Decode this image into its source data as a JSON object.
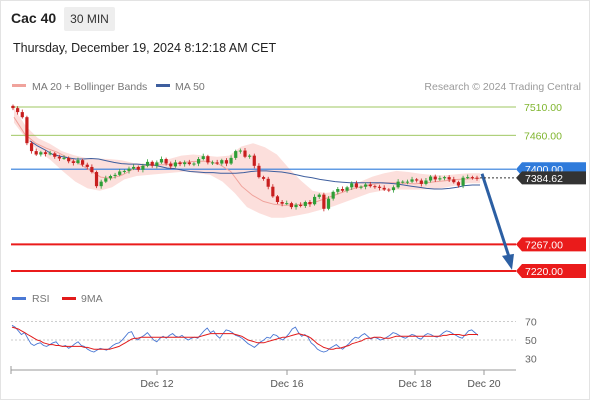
{
  "header": {
    "instrument": "Cac 40",
    "timeframe_button": "30 MIN"
  },
  "timestamp": "Thursday, December 19, 2024 8:12:18 AM CET",
  "colors": {
    "green_level": "#7fb52e",
    "blue_level": "#2f7bdb",
    "red_level": "#ea1b1b",
    "bollinger_fill": "#fbd4d0",
    "ma20": "#f0a39c",
    "ma50": "#3e5e9e",
    "candle_up": "#2e9e37",
    "candle_down": "#c81e1e",
    "projection_arrow": "#2c5fa3",
    "rsi": "#4a78d4",
    "rsi_ma": "#e21b1b",
    "price_tag": "#333333"
  },
  "chart_data": [
    {
      "type": "candlestick",
      "legend": [
        {
          "name": "MA 20 + Bollinger Bands",
          "color": "#f0a39c"
        },
        {
          "name": "MA 50",
          "color": "#3e5e9e"
        }
      ],
      "legend_placement": "top-left",
      "watermark": "Research © 2024 Trading Central",
      "ylim": [
        7205,
        7525
      ],
      "x_ticks": [
        "Dec 12",
        "Dec 16",
        "Dec 18",
        "Dec 20"
      ],
      "levels": [
        {
          "value": 7510,
          "label": "7510.00",
          "color": "#7fb52e",
          "style": "thin"
        },
        {
          "value": 7460,
          "label": "7460.00",
          "color": "#7fb52e",
          "style": "thin"
        },
        {
          "value": 7400,
          "label": "7400.00",
          "color": "#2f7bdb",
          "style": "tag"
        },
        {
          "value": 7267,
          "label": "7267.00",
          "color": "#ea1b1b",
          "style": "tag"
        },
        {
          "value": 7220,
          "label": "7220.00",
          "color": "#ea1b1b",
          "style": "tag"
        }
      ],
      "last_price": {
        "value": 7384.62,
        "label": "7384.62"
      },
      "closes": [
        7508,
        7501,
        7492,
        7446,
        7432,
        7426,
        7430,
        7427,
        7428,
        7422,
        7419,
        7420,
        7414,
        7411,
        7416,
        7408,
        7404,
        7395,
        7370,
        7378,
        7384,
        7388,
        7390,
        7396,
        7397,
        7401,
        7404,
        7399,
        7406,
        7413,
        7406,
        7412,
        7418,
        7410,
        7405,
        7412,
        7409,
        7412,
        7409,
        7410,
        7418,
        7423,
        7412,
        7412,
        7410,
        7416,
        7410,
        7420,
        7432,
        7433,
        7422,
        7424,
        7406,
        7386,
        7383,
        7369,
        7352,
        7342,
        7339,
        7340,
        7333,
        7337,
        7335,
        7342,
        7338,
        7351,
        7355,
        7330,
        7348,
        7360,
        7365,
        7362,
        7368,
        7375,
        7368,
        7369,
        7373,
        7370,
        7369,
        7367,
        7364,
        7363,
        7368,
        7378,
        7378,
        7378,
        7382,
        7380,
        7374,
        7380,
        7387,
        7382,
        7384,
        7386,
        7382,
        7377,
        7371,
        7385,
        7386,
        7385,
        7384
      ],
      "ma50": [
        7450,
        7441,
        7434,
        7426,
        7423,
        7420,
        7418,
        7418,
        7419,
        7418,
        7415,
        7412,
        7410,
        7409,
        7409,
        7408,
        7408,
        7405,
        7402,
        7401,
        7398,
        7396,
        7395,
        7394,
        7394,
        7393,
        7393,
        7393,
        7394,
        7396,
        7397,
        7397,
        7396,
        7395,
        7393,
        7390,
        7387,
        7385,
        7382,
        7380,
        7378,
        7377,
        7376,
        7376,
        7376,
        7376,
        7376,
        7375,
        7374,
        7372,
        7370,
        7368,
        7366,
        7365,
        7365,
        7366,
        7368,
        7371,
        7372,
        7372
      ],
      "ma20": [
        7492,
        7462,
        7446,
        7437,
        7430,
        7420,
        7410,
        7398,
        7386,
        7384,
        7390,
        7400,
        7406,
        7408,
        7408,
        7410,
        7413,
        7414,
        7414,
        7408,
        7396,
        7370,
        7354,
        7343,
        7338,
        7336,
        7337,
        7339,
        7343,
        7350,
        7357,
        7364,
        7369,
        7373,
        7376,
        7376,
        7375,
        7374,
        7376,
        7378,
        7380,
        7382,
        7383,
        7384
      ],
      "bb_upper": [
        7508,
        7476,
        7455,
        7445,
        7432,
        7425,
        7420,
        7419,
        7418,
        7416,
        7411,
        7410,
        7412,
        7418,
        7424,
        7426,
        7424,
        7422,
        7424,
        7440,
        7446,
        7439,
        7426,
        7402,
        7380,
        7362,
        7358,
        7360,
        7368,
        7378,
        7387,
        7393,
        7397,
        7395,
        7392,
        7390,
        7389,
        7391,
        7393,
        7393
      ],
      "bb_lower": [
        7482,
        7454,
        7432,
        7416,
        7396,
        7378,
        7366,
        7362,
        7368,
        7382,
        7388,
        7390,
        7392,
        7394,
        7396,
        7393,
        7390,
        7378,
        7358,
        7333,
        7322,
        7314,
        7314,
        7318,
        7322,
        7328,
        7334,
        7342,
        7350,
        7358,
        7362,
        7364,
        7364,
        7364,
        7365,
        7367,
        7371,
        7375,
        7375
      ]
    },
    {
      "type": "line",
      "legend": [
        {
          "name": "RSI",
          "color": "#4a78d4"
        },
        {
          "name": "9MA",
          "color": "#e21b1b"
        }
      ],
      "legend_placement": "top-left",
      "ylim": [
        20,
        80
      ],
      "y_ticks": [
        70,
        50,
        30
      ],
      "x_ticks": [
        "Dec 12",
        "Dec 16",
        "Dec 18",
        "Dec 20"
      ],
      "rsi": [
        66,
        64,
        60,
        56,
        58,
        52,
        46,
        44,
        46,
        47,
        44,
        43,
        45,
        47,
        48,
        44,
        43,
        44,
        41,
        43,
        46,
        48,
        44,
        43,
        40,
        38,
        37,
        39,
        41,
        40,
        39,
        41,
        44,
        46,
        47,
        50,
        54,
        58,
        59,
        52,
        50,
        53,
        55,
        58,
        54,
        50,
        48,
        52,
        54,
        52,
        55,
        57,
        54,
        53,
        55,
        52,
        50,
        52,
        53,
        52,
        56,
        60,
        63,
        58,
        60,
        55,
        52,
        57,
        61,
        60,
        58,
        55,
        54,
        52,
        49,
        46,
        44,
        42,
        45,
        48,
        50,
        53,
        52,
        56,
        55,
        52,
        50,
        53,
        57,
        62,
        64,
        58,
        54,
        56,
        53,
        47,
        44,
        40,
        38,
        37,
        38,
        41,
        43,
        45,
        42,
        40,
        43,
        46,
        50,
        53,
        52,
        55,
        57,
        54,
        51,
        53,
        52,
        50,
        51,
        53,
        55,
        58,
        57,
        55,
        53,
        52,
        54,
        56,
        55,
        52,
        51,
        55,
        57,
        56,
        54,
        53,
        55,
        58,
        60,
        59,
        57,
        55,
        53,
        52,
        56,
        60,
        61,
        58,
        55
      ],
      "rsi_ma": [
        64,
        63,
        62,
        60,
        58,
        56,
        54,
        52,
        50,
        49,
        47,
        46,
        45,
        45,
        44,
        44,
        43,
        43,
        43,
        43,
        43,
        43,
        43,
        42,
        42,
        41,
        40,
        40,
        40,
        40,
        40,
        40,
        41,
        42,
        43,
        45,
        47,
        49,
        51,
        52,
        52,
        53,
        53,
        53,
        53,
        53,
        53,
        53,
        53,
        53,
        53,
        53,
        53,
        53,
        53,
        53,
        53,
        53,
        53,
        53,
        54,
        55,
        56,
        57,
        57,
        57,
        57,
        57,
        57,
        57,
        57,
        56,
        55,
        54,
        52,
        50,
        49,
        48,
        47,
        47,
        47,
        48,
        49,
        50,
        51,
        52,
        53,
        53,
        54,
        55,
        56,
        57,
        56,
        55,
        54,
        52,
        49,
        46,
        44,
        42,
        41,
        40,
        40,
        41,
        41,
        42,
        43,
        44,
        46,
        47,
        48,
        49,
        51,
        52,
        52,
        53,
        53,
        53,
        52,
        52,
        52,
        53,
        54,
        54,
        54,
        54,
        54,
        54,
        54,
        54,
        54,
        54,
        54,
        54,
        54,
        54,
        54,
        55,
        55,
        56,
        56,
        56,
        56,
        55,
        55,
        56,
        56,
        56,
        56
      ]
    }
  ]
}
